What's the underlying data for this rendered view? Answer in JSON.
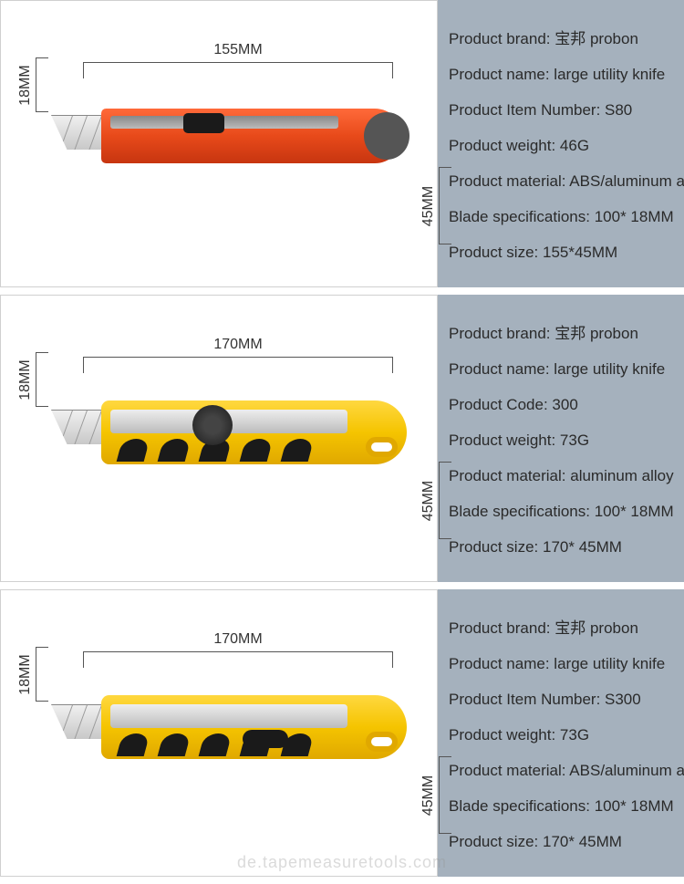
{
  "colors": {
    "spec_bg": "#a5b1bd",
    "spec_text": "#2a2a2a",
    "panel_border": "#d0d0d0",
    "orange": "#e84a1a",
    "yellow": "#f5c400",
    "dark": "#1a1a1a"
  },
  "watermark": "de.tapemeasuretools.com",
  "products": [
    {
      "diagram": {
        "top_dim": "155MM",
        "left_dim": "18MM",
        "right_dim": "45MM",
        "knife_style": "orange"
      },
      "specs": [
        {
          "label": "Product brand",
          "value": "宝邦 probon"
        },
        {
          "label": "Product name",
          "value": "large utility knife"
        },
        {
          "label": "Product Item Number",
          "value": "S80"
        },
        {
          "label": "Product weight",
          "value": "46G"
        },
        {
          "label": "Product material",
          "value": "ABS/aluminum alloy"
        },
        {
          "label": "Blade specifications",
          "value": "100* 18MM"
        },
        {
          "label": "Product size",
          "value": "155*45MM"
        }
      ]
    },
    {
      "diagram": {
        "top_dim": "170MM",
        "left_dim": "18MM",
        "right_dim": "45MM",
        "knife_style": "yellow-knob"
      },
      "specs": [
        {
          "label": "Product brand",
          "value": "宝邦 probon"
        },
        {
          "label": "Product name",
          "value": "large utility knife"
        },
        {
          "label": "Product Code",
          "value": "300"
        },
        {
          "label": "Product weight",
          "value": "73G"
        },
        {
          "label": "Product material",
          "value": "aluminum alloy"
        },
        {
          "label": "Blade specifications",
          "value": "100* 18MM"
        },
        {
          "label": "Product size",
          "value": "170* 45MM"
        }
      ]
    },
    {
      "diagram": {
        "top_dim": "170MM",
        "left_dim": "18MM",
        "right_dim": "45MM",
        "knife_style": "yellow-wheel"
      },
      "specs": [
        {
          "label": "Product brand",
          "value": "宝邦 probon"
        },
        {
          "label": "Product name",
          "value": "large utility knife"
        },
        {
          "label": "Product Item Number",
          "value": "S300"
        },
        {
          "label": "Product weight",
          "value": "73G"
        },
        {
          "label": "Product material",
          "value": "ABS/aluminum alloy"
        },
        {
          "label": "Blade specifications",
          "value": "100* 18MM"
        },
        {
          "label": "Product size",
          "value": "170* 45MM"
        }
      ]
    }
  ]
}
